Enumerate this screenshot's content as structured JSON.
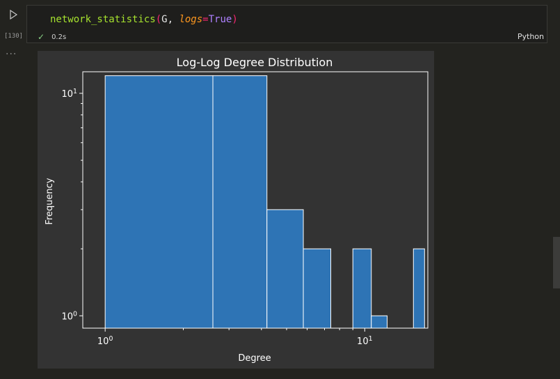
{
  "cell": {
    "exec_count": "[130]",
    "code": {
      "fn": "network_statistics",
      "open": "(",
      "arg": "G, ",
      "kw": "logs",
      "eq": "=",
      "val": "True",
      "close": ")"
    },
    "status_time": "0.2s",
    "language": "Python",
    "more": "···"
  },
  "chart_data": {
    "type": "bar",
    "title": "Log-Log Degree Distribution",
    "xlabel": "Degree",
    "ylabel": "Frequency",
    "xscale": "log",
    "yscale": "log",
    "xlim": [
      0.82,
      17.5
    ],
    "ylim": [
      0.88,
      12.5
    ],
    "x_ticks": [
      {
        "base": "10",
        "exp": "0",
        "value": 1
      },
      {
        "base": "10",
        "exp": "1",
        "value": 10
      }
    ],
    "y_ticks": [
      {
        "base": "10",
        "exp": "0",
        "value": 1
      },
      {
        "base": "10",
        "exp": "1",
        "value": 10
      }
    ],
    "bins": [
      {
        "left": 1.0,
        "right": 2.6,
        "value": 12
      },
      {
        "left": 2.6,
        "right": 4.2,
        "value": 12
      },
      {
        "left": 4.2,
        "right": 5.8,
        "value": 3
      },
      {
        "left": 5.8,
        "right": 7.4,
        "value": 2
      },
      {
        "left": 7.4,
        "right": 9.0,
        "value": 0
      },
      {
        "left": 9.0,
        "right": 10.6,
        "value": 2
      },
      {
        "left": 10.6,
        "right": 12.2,
        "value": 1
      },
      {
        "left": 12.2,
        "right": 13.8,
        "value": 0
      },
      {
        "left": 13.8,
        "right": 15.4,
        "value": 0
      },
      {
        "left": 15.4,
        "right": 17.0,
        "value": 2
      }
    ],
    "bar_color": "#2e74b5",
    "edge_color": "#ffffff"
  }
}
